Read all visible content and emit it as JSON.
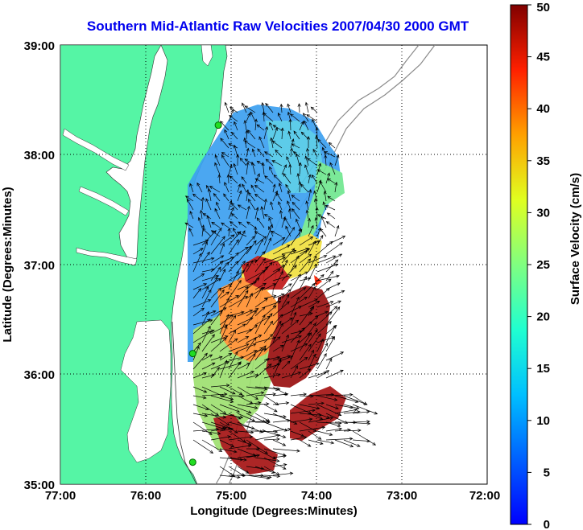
{
  "title": "Southern Mid-Atlantic Raw Velocities 2007/04/30 2000 GMT",
  "xlabel": "Longitude (Degrees:Minutes)",
  "ylabel": "Latitude (Degrees:Minutes)",
  "colorbar_label": "Surface Velocity (cm/s)",
  "x_ticks": [
    "77:00",
    "76:00",
    "75:00",
    "74:00",
    "73:00",
    "72:00"
  ],
  "y_ticks": [
    "39:00",
    "38:00",
    "37:00",
    "36:00",
    "35:00"
  ],
  "colorbar_ticks": [
    "50",
    "45",
    "40",
    "35",
    "30",
    "25",
    "20",
    "15",
    "10",
    "5",
    "0"
  ],
  "colors": {
    "land": "#55f5a5",
    "ocean": "#ffffff",
    "title": "#0000ee",
    "stations": "#22dd22",
    "grid": "#000000"
  },
  "chart_data": {
    "type": "heatmap",
    "x_range": [
      -77,
      -72
    ],
    "y_range": [
      35,
      39
    ],
    "colorbar_range": [
      0,
      50
    ],
    "colorbar_units": "cm/s",
    "grid": true,
    "colormap": "jet",
    "stations": [
      {
        "lon": -75.15,
        "lat": 38.27
      },
      {
        "lon": -75.45,
        "lat": 36.19
      },
      {
        "lon": -75.45,
        "lat": 35.2
      }
    ]
  }
}
